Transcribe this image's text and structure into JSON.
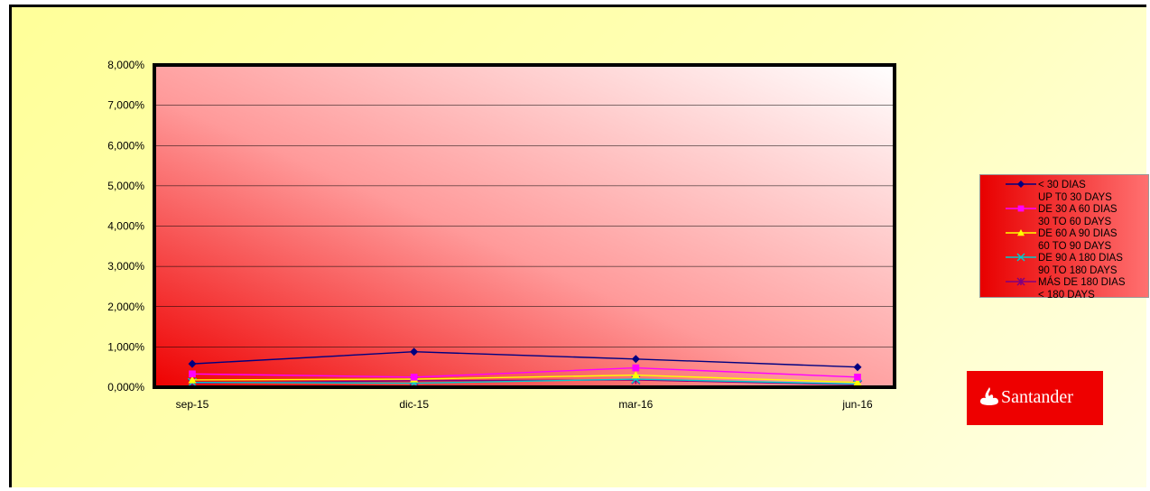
{
  "chart_data": {
    "type": "line",
    "categories": [
      "sep-15",
      "dic-15",
      "mar-16",
      "jun-16"
    ],
    "ylim": [
      0,
      8
    ],
    "yticks": [
      "0,000%",
      "1,000%",
      "2,000%",
      "3,000%",
      "4,000%",
      "5,000%",
      "6,000%",
      "7,000%",
      "8,000%"
    ],
    "ytick_values": [
      0,
      1,
      2,
      3,
      4,
      5,
      6,
      7,
      8
    ],
    "grid": true,
    "legend_position": "right",
    "series": [
      {
        "name": "<  30 DIAS",
        "name2": "UP T0 30 DAYS",
        "values": [
          0.58,
          0.88,
          0.7,
          0.5
        ],
        "color": "#000080",
        "marker": "diamond"
      },
      {
        "name": "DE 30 A 60 DIAS",
        "name2": "30 TO 60 DAYS",
        "values": [
          0.33,
          0.25,
          0.48,
          0.25
        ],
        "color": "#ff00ff",
        "marker": "square"
      },
      {
        "name": "DE 60 A 90 DIAS",
        "name2": "60 TO 90 DAYS",
        "values": [
          0.18,
          0.2,
          0.3,
          0.12
        ],
        "color": "#ffff00",
        "marker": "triangle"
      },
      {
        "name": "DE 90 A 180 DIAS",
        "name2": "90  TO 180 DAYS",
        "values": [
          0.12,
          0.1,
          0.2,
          0.08
        ],
        "color": "#00cccc",
        "marker": "x"
      },
      {
        "name": "MÁS DE 180 DIAS",
        "name2": "< 180 DAYS",
        "values": [
          0.1,
          0.16,
          0.18,
          0.06
        ],
        "color": "#800080",
        "marker": "star"
      }
    ]
  },
  "logo": {
    "text": "Santander",
    "color": "#ee0000"
  }
}
